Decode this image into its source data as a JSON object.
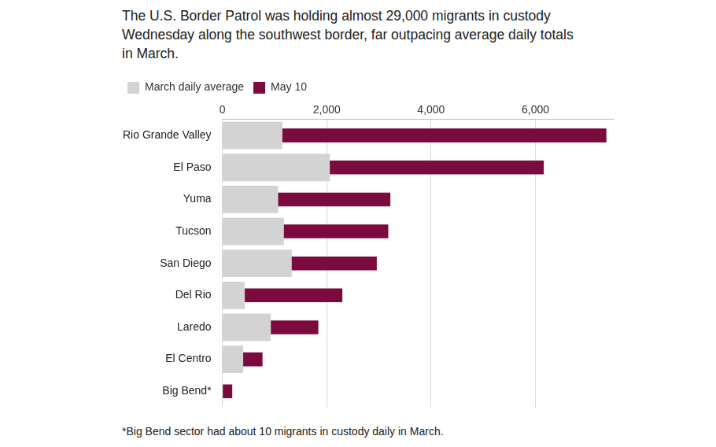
{
  "chart_data": {
    "type": "bar",
    "title": "The U.S. Border Patrol was holding almost 29,000 migrants in custody Wednesday along the southwest border, far outpacing average daily totals in March.",
    "note": "*Big Bend sector had about 10 migrants in custody daily in March.",
    "orientation": "horizontal",
    "categories": [
      "Rio Grande Valley",
      "El Paso",
      "Yuma",
      "Tucson",
      "San Diego",
      "Del Rio",
      "Laredo",
      "El Centro",
      "Big Bend*"
    ],
    "series": [
      {
        "name": "March daily average",
        "color": "#d3d3d3",
        "values": [
          1150,
          2060,
          1070,
          1180,
          1330,
          430,
          930,
          400,
          10
        ]
      },
      {
        "name": "May 10",
        "color": "#7b0a3e",
        "values": [
          7360,
          6160,
          3220,
          3180,
          2960,
          2300,
          1840,
          770,
          190
        ]
      }
    ],
    "xlim": [
      0,
      7500
    ],
    "xticks": [
      0,
      {
        "value": 2000,
        "label": "2,000"
      },
      {
        "value": 4000,
        "label": "4,000"
      },
      {
        "value": 6000,
        "label": "6,000"
      }
    ],
    "grid": true,
    "legend": "top-left"
  }
}
